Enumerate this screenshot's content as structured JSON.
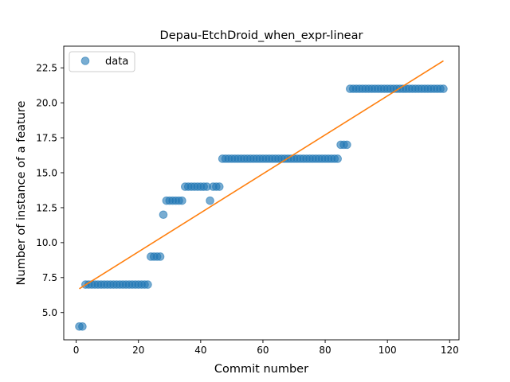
{
  "chart_data": {
    "type": "scatter",
    "title": "Depau-EtchDroid_when_expr-linear",
    "xlabel": "Commit number",
    "ylabel": "Number of instance of a feature",
    "xlim": [
      -4,
      123
    ],
    "ylim": [
      3.05,
      24.05
    ],
    "x_ticks": [
      0,
      20,
      40,
      60,
      80,
      100,
      120
    ],
    "y_ticks": [
      5.0,
      7.5,
      10.0,
      12.5,
      15.0,
      17.5,
      20.0,
      22.5
    ],
    "y_tick_labels": [
      "5.0",
      "7.5",
      "10.0",
      "12.5",
      "15.0",
      "17.5",
      "20.0",
      "22.5"
    ],
    "grid": false,
    "legend": {
      "position": "top-left",
      "entries": [
        "data"
      ]
    },
    "series": [
      {
        "name": "data",
        "kind": "scatter",
        "color": "#1f77b4",
        "segments": [
          {
            "x_from": 1,
            "x_to": 2,
            "y": 4
          },
          {
            "x_from": 3,
            "x_to": 23,
            "y": 7
          },
          {
            "x_from": 24,
            "x_to": 27,
            "y": 9
          },
          {
            "x_from": 28,
            "x_to": 28,
            "y": 12
          },
          {
            "x_from": 29,
            "x_to": 34,
            "y": 13
          },
          {
            "x_from": 35,
            "x_to": 42,
            "y": 14
          },
          {
            "x_from": 43,
            "x_to": 43,
            "y": 13
          },
          {
            "x_from": 44,
            "x_to": 46,
            "y": 14
          },
          {
            "x_from": 47,
            "x_to": 84,
            "y": 16
          },
          {
            "x_from": 85,
            "x_to": 87,
            "y": 17
          },
          {
            "x_from": 88,
            "x_to": 118,
            "y": 21
          }
        ]
      },
      {
        "kind": "line",
        "color": "#ff7f0e",
        "x": [
          1,
          118
        ],
        "y": [
          6.7,
          23.0
        ]
      }
    ]
  }
}
